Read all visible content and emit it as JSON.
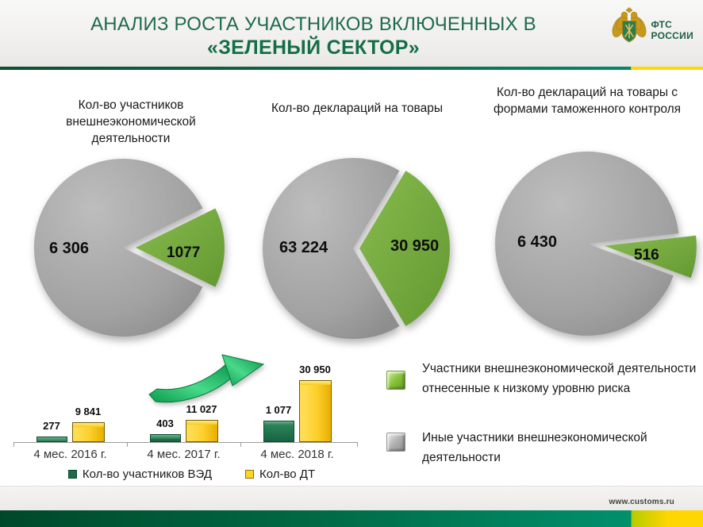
{
  "header": {
    "title_line1": "АНАЛИЗ РОСТА УЧАСТНИКОВ ВКЛЮЧЕННЫХ В",
    "title_line2": "«ЗЕЛЕНЫЙ СЕКТОР»",
    "logo_line1": "ФТС",
    "logo_line2": "РОССИИ"
  },
  "footer": {
    "website": "www.customs.ru"
  },
  "colors": {
    "title_green": "#1e6a50",
    "pie_gray": "#a2a2a2",
    "pie_green": "#76ab3d",
    "bar_green": "#1d6b4a",
    "bar_yellow": "#ffd428",
    "accent_yellow": "#ffd600",
    "footer_green": "#00906c"
  },
  "legend": {
    "items": [
      {
        "swatch": "green",
        "color": "#8dc63f",
        "label": "Участники внешнеэкономической деятельности отнесенные к низкому уровню риска"
      },
      {
        "swatch": "gray",
        "color": "#b5b5b5",
        "label": "Иные участники внешнеэкономической деятельности"
      }
    ]
  },
  "chart_data": [
    {
      "type": "pie",
      "title": "Кол-во участников внешнеэкономической деятельности",
      "slices": [
        {
          "label": "6 306",
          "value": 6306,
          "color": "#a2a2a2"
        },
        {
          "label": "1077",
          "value": 1077,
          "color": "#76ab3d",
          "exploded": true
        }
      ]
    },
    {
      "type": "pie",
      "title": "Кол-во деклараций на товары",
      "slices": [
        {
          "label": "63 224",
          "value": 63224,
          "color": "#a2a2a2"
        },
        {
          "label": "30 950",
          "value": 30950,
          "color": "#76ab3d",
          "exploded": true
        }
      ]
    },
    {
      "type": "pie",
      "title": "Кол-во деклараций на товары с формами таможенного контроля",
      "slices": [
        {
          "label": "6 430",
          "value": 6430,
          "color": "#a2a2a2"
        },
        {
          "label": "516",
          "value": 516,
          "color": "#76ab3d",
          "exploded": true
        }
      ]
    },
    {
      "type": "bar",
      "categories": [
        "4 мес. 2016 г.",
        "4 мес. 2017 г.",
        "4 мес. 2018 г."
      ],
      "series": [
        {
          "name": "Кол-во участников ВЭД",
          "color": "#1d6b4a",
          "axis": "secondary",
          "values": [
            277,
            403,
            1077
          ],
          "labels": [
            "277",
            "403",
            "1 077"
          ]
        },
        {
          "name": "Кол-во ДТ",
          "color": "#ffd428",
          "axis": "primary",
          "values": [
            9841,
            11027,
            30950
          ],
          "labels": [
            "9 841",
            "11 027",
            "30 950"
          ]
        }
      ],
      "annotation": "growth-arrow"
    }
  ]
}
